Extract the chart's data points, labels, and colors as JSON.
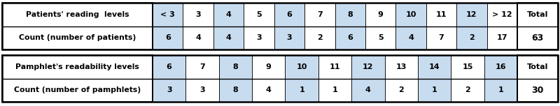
{
  "table1": {
    "label_col": [
      "Patients' reading  levels",
      "Count (number of patients)"
    ],
    "level_headers": [
      "< 3",
      "3",
      "4",
      "5",
      "6",
      "7",
      "8",
      "9",
      "10",
      "11",
      "12",
      "> 12"
    ],
    "counts": [
      "6",
      "4",
      "4",
      "3",
      "3",
      "2",
      "6",
      "5",
      "4",
      "7",
      "2",
      "17"
    ],
    "total": "63",
    "total_label": "Total"
  },
  "table2": {
    "label_col": [
      "Pamphlet's readability levels",
      "Count (number of pamphlets)"
    ],
    "level_headers": [
      "6",
      "7",
      "8",
      "9",
      "10",
      "11",
      "12",
      "13",
      "14",
      "15",
      "16"
    ],
    "counts": [
      "3",
      "3",
      "8",
      "4",
      "1",
      "1",
      "4",
      "2",
      "1",
      "2",
      "1"
    ],
    "total": "30",
    "total_label": "Total"
  },
  "blue_color": "#C8DCF0",
  "white_color": "#FFFFFF",
  "border_color": "#000000",
  "text_color": "#000000",
  "gap_color": "#FFFFFF",
  "fig_bg": "#FFFFFF",
  "label_fontsize": 7.8,
  "data_fontsize": 8.0,
  "total_fontsize": 9.0
}
